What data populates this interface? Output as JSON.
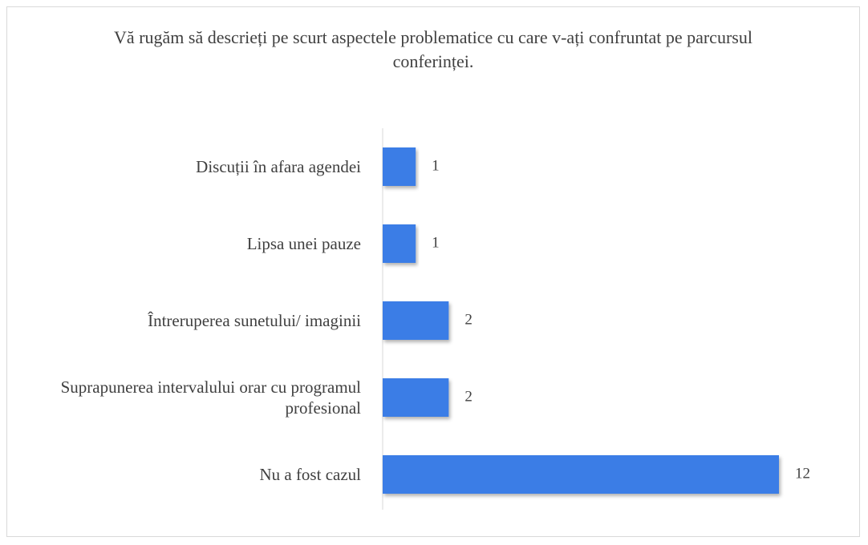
{
  "chart_data": {
    "type": "hbar",
    "title": "Vă rugăm să descrieți pe scurt aspectele problematice cu care v-ați confruntat pe parcursul conferinței.",
    "categories": [
      "Discuții în afara agendei",
      "Lipsa unei pauze",
      "Întreruperea sunetului/ imaginii",
      "Suprapunerea intervalului orar cu programul profesional",
      "Nu a fost cazul"
    ],
    "values": [
      1,
      1,
      2,
      2,
      12
    ],
    "color": "#3b7de6",
    "xlim": [
      0,
      12
    ]
  }
}
